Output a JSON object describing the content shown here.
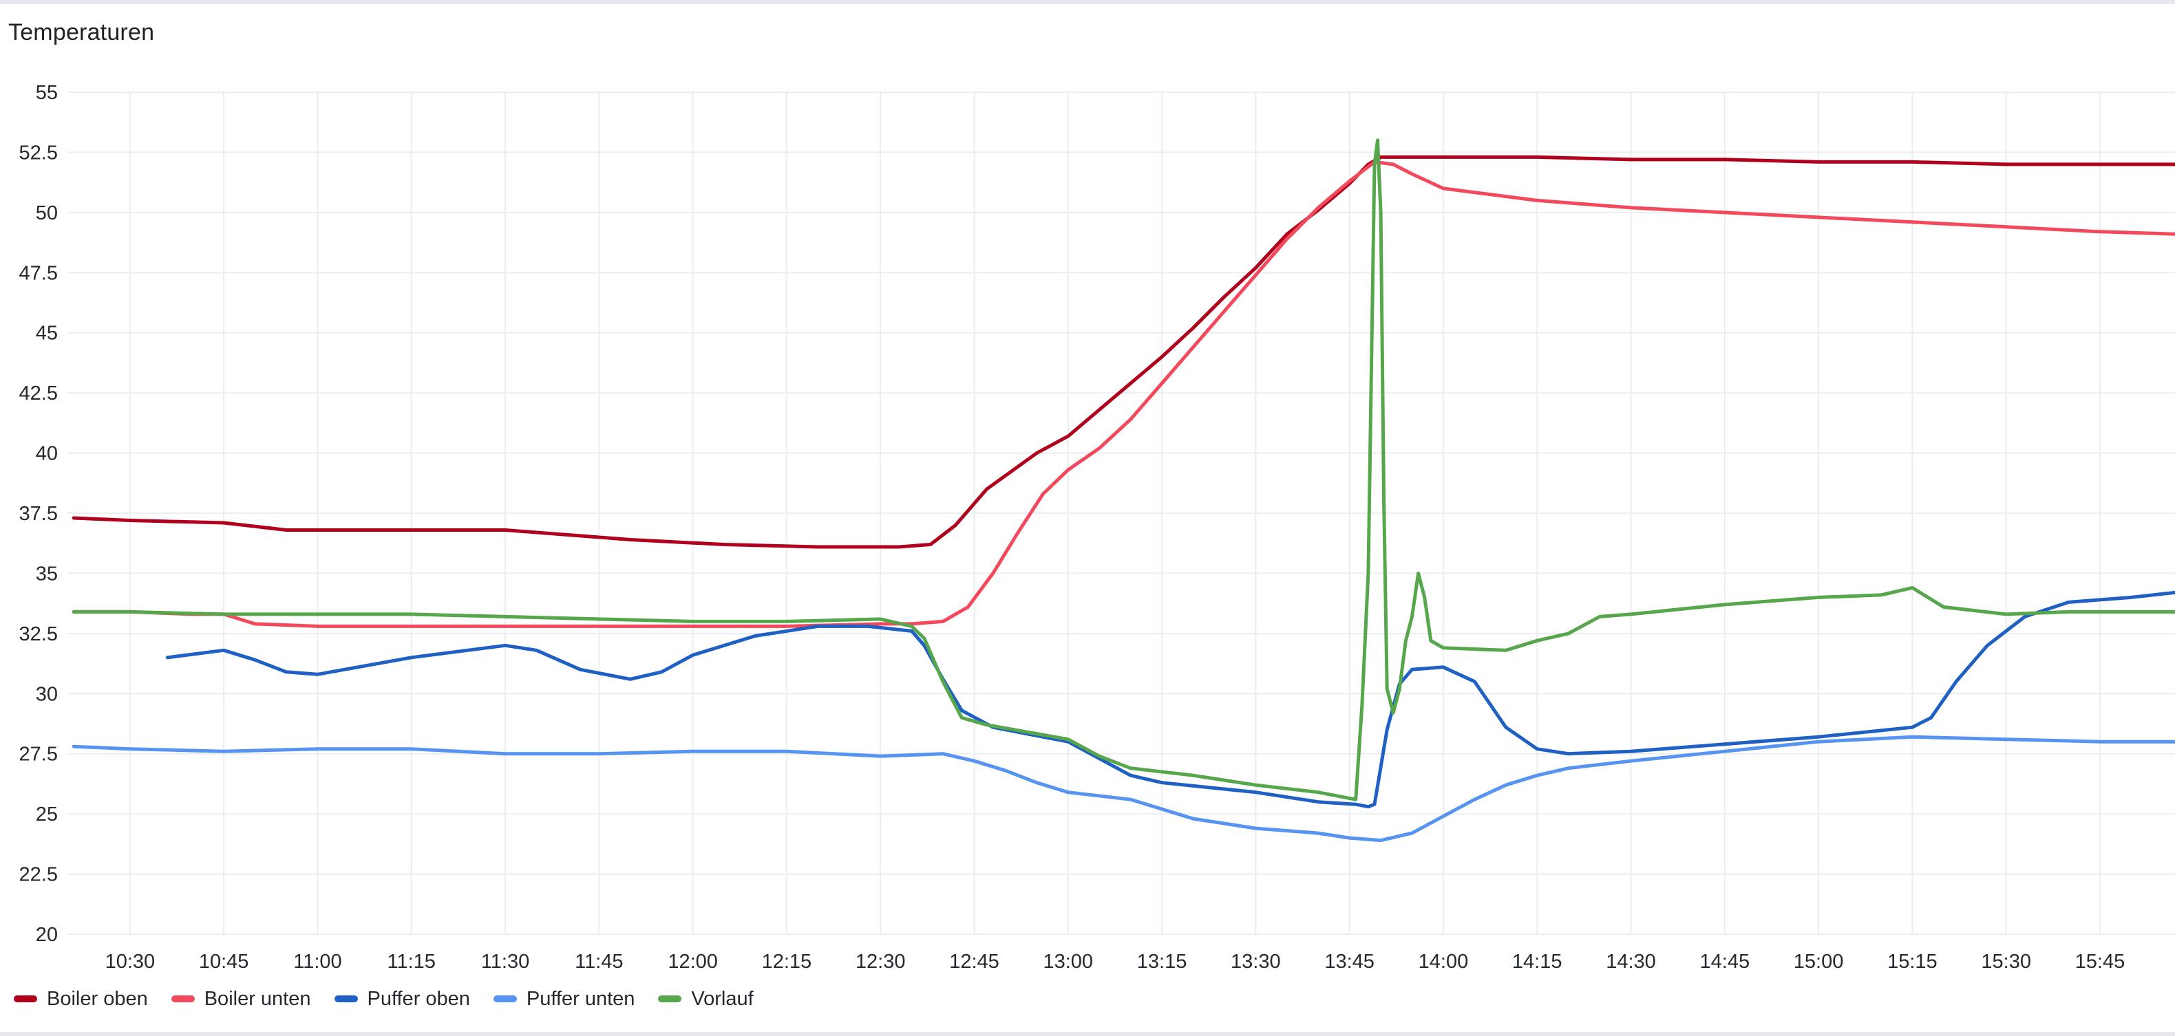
{
  "panel": {
    "title": "Temperaturen"
  },
  "chart_data": {
    "type": "line",
    "title": "Temperaturen",
    "xlabel": "",
    "ylabel": "",
    "x_unit": "time of day (HH:MM)",
    "xlim": [
      "10:20",
      "15:57"
    ],
    "ylim": [
      20,
      55
    ],
    "grid": true,
    "legend_position": "bottom",
    "x_ticks": [
      "10:30",
      "10:45",
      "11:00",
      "11:15",
      "11:30",
      "11:45",
      "12:00",
      "12:15",
      "12:30",
      "12:45",
      "13:00",
      "13:15",
      "13:30",
      "13:45",
      "14:00",
      "14:15",
      "14:30",
      "14:45",
      "15:00",
      "15:15",
      "15:30",
      "15:45"
    ],
    "y_ticks": [
      "20",
      "22.5",
      "25",
      "27.5",
      "30",
      "32.5",
      "35",
      "37.5",
      "40",
      "42.5",
      "45",
      "47.5",
      "50",
      "52.5",
      "55"
    ],
    "series": [
      {
        "name": "Boiler oben",
        "color": "#b1001b",
        "points": [
          [
            "10:21",
            37.3
          ],
          [
            "10:30",
            37.2
          ],
          [
            "10:45",
            37.1
          ],
          [
            "10:55",
            36.8
          ],
          [
            "11:15",
            36.8
          ],
          [
            "11:30",
            36.8
          ],
          [
            "11:35",
            36.7
          ],
          [
            "11:50",
            36.4
          ],
          [
            "12:05",
            36.2
          ],
          [
            "12:20",
            36.1
          ],
          [
            "12:33",
            36.1
          ],
          [
            "12:38",
            36.2
          ],
          [
            "12:42",
            37.0
          ],
          [
            "12:47",
            38.5
          ],
          [
            "12:55",
            40.0
          ],
          [
            "13:00",
            40.7
          ],
          [
            "13:05",
            41.8
          ],
          [
            "13:10",
            42.9
          ],
          [
            "13:15",
            44.0
          ],
          [
            "13:20",
            45.2
          ],
          [
            "13:25",
            46.5
          ],
          [
            "13:30",
            47.7
          ],
          [
            "13:35",
            49.1
          ],
          [
            "13:40",
            50.1
          ],
          [
            "13:45",
            51.2
          ],
          [
            "13:48",
            52.0
          ],
          [
            "13:50",
            52.3
          ],
          [
            "14:00",
            52.3
          ],
          [
            "14:15",
            52.3
          ],
          [
            "14:30",
            52.2
          ],
          [
            "14:45",
            52.2
          ],
          [
            "15:00",
            52.1
          ],
          [
            "15:15",
            52.1
          ],
          [
            "15:30",
            52.0
          ],
          [
            "15:45",
            52.0
          ],
          [
            "15:57",
            52.0
          ]
        ]
      },
      {
        "name": "Boiler unten",
        "color": "#f2495c",
        "points": [
          [
            "10:21",
            33.4
          ],
          [
            "10:30",
            33.4
          ],
          [
            "10:40",
            33.3
          ],
          [
            "10:45",
            33.3
          ],
          [
            "10:50",
            32.9
          ],
          [
            "11:00",
            32.8
          ],
          [
            "11:15",
            32.8
          ],
          [
            "11:30",
            32.8
          ],
          [
            "11:45",
            32.8
          ],
          [
            "12:00",
            32.8
          ],
          [
            "12:15",
            32.8
          ],
          [
            "12:30",
            32.9
          ],
          [
            "12:35",
            32.9
          ],
          [
            "12:40",
            33.0
          ],
          [
            "12:44",
            33.6
          ],
          [
            "12:48",
            35.0
          ],
          [
            "12:52",
            36.7
          ],
          [
            "12:56",
            38.3
          ],
          [
            "13:00",
            39.3
          ],
          [
            "13:05",
            40.2
          ],
          [
            "13:10",
            41.4
          ],
          [
            "13:15",
            42.9
          ],
          [
            "13:20",
            44.4
          ],
          [
            "13:25",
            45.9
          ],
          [
            "13:30",
            47.4
          ],
          [
            "13:35",
            48.9
          ],
          [
            "13:40",
            50.2
          ],
          [
            "13:45",
            51.3
          ],
          [
            "13:49",
            52.1
          ],
          [
            "13:52",
            52.0
          ],
          [
            "13:55",
            51.6
          ],
          [
            "14:00",
            51.0
          ],
          [
            "14:15",
            50.5
          ],
          [
            "14:30",
            50.2
          ],
          [
            "14:45",
            50.0
          ],
          [
            "15:00",
            49.8
          ],
          [
            "15:15",
            49.6
          ],
          [
            "15:30",
            49.4
          ],
          [
            "15:45",
            49.2
          ],
          [
            "15:57",
            49.1
          ]
        ]
      },
      {
        "name": "Puffer oben",
        "color": "#1f60c4",
        "points": [
          [
            "10:36",
            31.5
          ],
          [
            "10:45",
            31.8
          ],
          [
            "10:50",
            31.4
          ],
          [
            "10:55",
            30.9
          ],
          [
            "11:00",
            30.8
          ],
          [
            "11:15",
            31.5
          ],
          [
            "11:30",
            32.0
          ],
          [
            "11:35",
            31.8
          ],
          [
            "11:42",
            31.0
          ],
          [
            "11:50",
            30.6
          ],
          [
            "11:55",
            30.9
          ],
          [
            "12:00",
            31.6
          ],
          [
            "12:10",
            32.4
          ],
          [
            "12:20",
            32.8
          ],
          [
            "12:28",
            32.8
          ],
          [
            "12:35",
            32.6
          ],
          [
            "12:37",
            32.0
          ],
          [
            "12:40",
            30.6
          ],
          [
            "12:43",
            29.3
          ],
          [
            "12:48",
            28.6
          ],
          [
            "13:00",
            28.0
          ],
          [
            "13:05",
            27.3
          ],
          [
            "13:10",
            26.6
          ],
          [
            "13:15",
            26.3
          ],
          [
            "13:30",
            25.9
          ],
          [
            "13:40",
            25.5
          ],
          [
            "13:46",
            25.4
          ],
          [
            "13:48",
            25.3
          ],
          [
            "13:49",
            25.4
          ],
          [
            "13:51",
            28.5
          ],
          [
            "13:53",
            30.4
          ],
          [
            "13:55",
            31.0
          ],
          [
            "14:00",
            31.1
          ],
          [
            "14:05",
            30.5
          ],
          [
            "14:10",
            28.6
          ],
          [
            "14:15",
            27.7
          ],
          [
            "14:20",
            27.5
          ],
          [
            "14:30",
            27.6
          ],
          [
            "14:45",
            27.9
          ],
          [
            "15:00",
            28.2
          ],
          [
            "15:15",
            28.6
          ],
          [
            "15:18",
            29.0
          ],
          [
            "15:22",
            30.5
          ],
          [
            "15:27",
            32.0
          ],
          [
            "15:33",
            33.2
          ],
          [
            "15:40",
            33.8
          ],
          [
            "15:50",
            34.0
          ],
          [
            "15:57",
            34.2
          ]
        ]
      },
      {
        "name": "Puffer unten",
        "color": "#5794f2",
        "points": [
          [
            "10:21",
            27.8
          ],
          [
            "10:30",
            27.7
          ],
          [
            "10:45",
            27.6
          ],
          [
            "11:00",
            27.7
          ],
          [
            "11:15",
            27.7
          ],
          [
            "11:30",
            27.5
          ],
          [
            "11:45",
            27.5
          ],
          [
            "12:00",
            27.6
          ],
          [
            "12:15",
            27.6
          ],
          [
            "12:30",
            27.4
          ],
          [
            "12:40",
            27.5
          ],
          [
            "12:45",
            27.2
          ],
          [
            "12:50",
            26.8
          ],
          [
            "12:55",
            26.3
          ],
          [
            "13:00",
            25.9
          ],
          [
            "13:10",
            25.6
          ],
          [
            "13:15",
            25.2
          ],
          [
            "13:20",
            24.8
          ],
          [
            "13:30",
            24.4
          ],
          [
            "13:40",
            24.2
          ],
          [
            "13:45",
            24.0
          ],
          [
            "13:50",
            23.9
          ],
          [
            "13:55",
            24.2
          ],
          [
            "14:00",
            24.9
          ],
          [
            "14:05",
            25.6
          ],
          [
            "14:10",
            26.2
          ],
          [
            "14:15",
            26.6
          ],
          [
            "14:20",
            26.9
          ],
          [
            "14:30",
            27.2
          ],
          [
            "14:45",
            27.6
          ],
          [
            "15:00",
            28.0
          ],
          [
            "15:15",
            28.2
          ],
          [
            "15:30",
            28.1
          ],
          [
            "15:45",
            28.0
          ],
          [
            "15:57",
            28.0
          ]
        ]
      },
      {
        "name": "Vorlauf",
        "color": "#56a64b",
        "points": [
          [
            "10:21",
            33.4
          ],
          [
            "10:30",
            33.4
          ],
          [
            "10:45",
            33.3
          ],
          [
            "11:00",
            33.3
          ],
          [
            "11:15",
            33.3
          ],
          [
            "11:30",
            33.2
          ],
          [
            "11:45",
            33.1
          ],
          [
            "12:00",
            33.0
          ],
          [
            "12:15",
            33.0
          ],
          [
            "12:30",
            33.1
          ],
          [
            "12:35",
            32.8
          ],
          [
            "12:37",
            32.3
          ],
          [
            "12:40",
            30.5
          ],
          [
            "12:43",
            29.0
          ],
          [
            "12:47",
            28.7
          ],
          [
            "13:00",
            28.1
          ],
          [
            "13:05",
            27.4
          ],
          [
            "13:10",
            26.9
          ],
          [
            "13:20",
            26.6
          ],
          [
            "13:30",
            26.2
          ],
          [
            "13:40",
            25.9
          ],
          [
            "13:46",
            25.6
          ],
          [
            "13:47",
            29.5
          ],
          [
            "13:48",
            35.0
          ],
          [
            "13:49",
            52.0
          ],
          [
            "13:49.5",
            53.0
          ],
          [
            "13:50",
            50.0
          ],
          [
            "13:50.5",
            38.0
          ],
          [
            "13:51",
            30.2
          ],
          [
            "13:52",
            29.2
          ],
          [
            "13:53",
            30.2
          ],
          [
            "13:54",
            32.2
          ],
          [
            "13:55",
            33.2
          ],
          [
            "13:56",
            35.0
          ],
          [
            "13:57",
            34.0
          ],
          [
            "13:58",
            32.2
          ],
          [
            "14:00",
            31.9
          ],
          [
            "14:10",
            31.8
          ],
          [
            "14:15",
            32.2
          ],
          [
            "14:20",
            32.5
          ],
          [
            "14:25",
            33.2
          ],
          [
            "14:30",
            33.3
          ],
          [
            "14:45",
            33.7
          ],
          [
            "15:00",
            34.0
          ],
          [
            "15:10",
            34.1
          ],
          [
            "15:15",
            34.4
          ],
          [
            "15:20",
            33.6
          ],
          [
            "15:30",
            33.3
          ],
          [
            "15:40",
            33.4
          ],
          [
            "15:45",
            33.4
          ],
          [
            "15:57",
            33.4
          ]
        ]
      }
    ]
  }
}
